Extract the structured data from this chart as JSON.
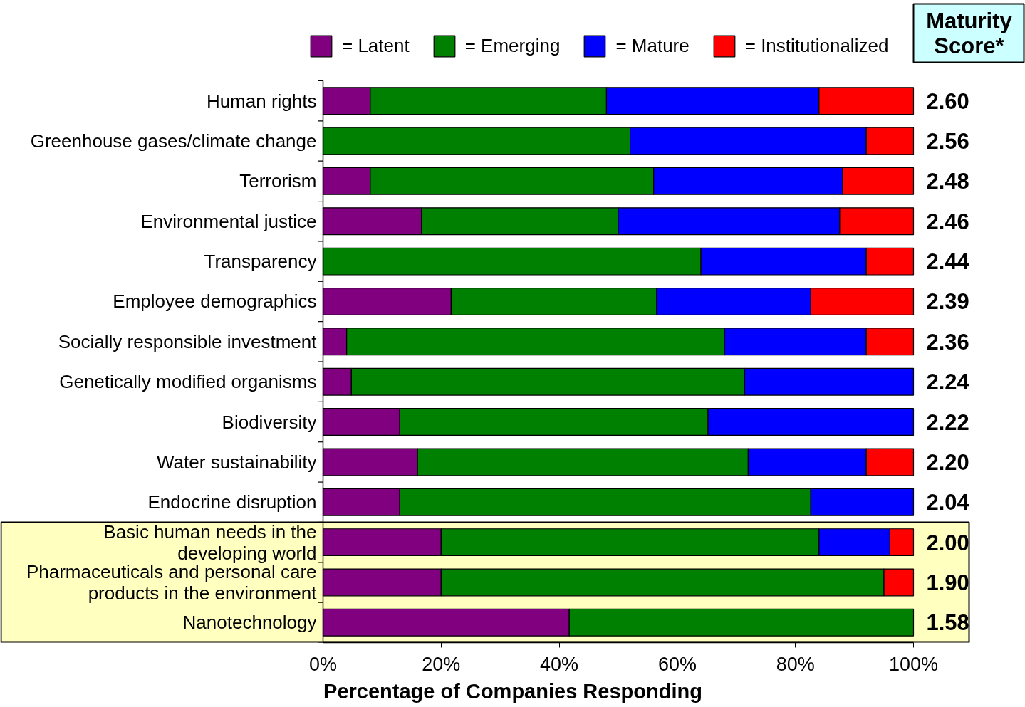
{
  "chart_data": {
    "type": "bar",
    "orientation": "horizontal",
    "stacked": true,
    "categories": [
      "Human rights",
      "Greenhouse gases/climate change",
      "Terrorism",
      "Environmental justice",
      "Transparency",
      "Employee demographics",
      "Socially responsible investment",
      "Genetically modified organisms",
      "Biodiversity",
      "Water sustainability",
      "Endocrine disruption",
      "Basic human needs in the developing world",
      "Pharmaceuticals and personal care products in the environment",
      "Nanotechnology"
    ],
    "series": [
      {
        "name": "= Latent",
        "color": "#800080",
        "values": [
          8,
          0,
          8,
          16.7,
          0,
          21.7,
          4,
          4.8,
          13.0,
          16,
          13.0,
          20,
          20,
          41.7
        ]
      },
      {
        "name": "= Emerging",
        "color": "#008000",
        "values": [
          40,
          52,
          48,
          33.3,
          64,
          34.8,
          64,
          66.6,
          52.2,
          56,
          69.6,
          64,
          75,
          58.3
        ]
      },
      {
        "name": "= Mature",
        "color": "#0000ff",
        "values": [
          36,
          40,
          32,
          37.5,
          28,
          26.1,
          24,
          28.6,
          34.8,
          20,
          17.4,
          12,
          0,
          0
        ]
      },
      {
        "name": "= Institutionalized",
        "color": "#ff0000",
        "values": [
          16,
          8,
          12,
          12.5,
          8,
          17.4,
          8,
          0,
          0,
          8,
          0,
          4,
          5,
          0
        ]
      }
    ],
    "xlabel": "Percentage of Companies Responding",
    "xlim": [
      0,
      100
    ],
    "xticks": [
      {
        "value": 0,
        "label": "0%"
      },
      {
        "value": 20,
        "label": "20%"
      },
      {
        "value": 40,
        "label": "40%"
      },
      {
        "value": 60,
        "label": "60%"
      },
      {
        "value": 80,
        "label": "80%"
      },
      {
        "value": 100,
        "label": "100%"
      }
    ],
    "bands": [
      {
        "axis": "y",
        "from": "Basic human needs in the developing world",
        "to": "Nanotechnology",
        "color": "#ffffc0"
      }
    ],
    "annotations": [
      "Maturity Score*",
      "2.60",
      "2.56",
      "2.48",
      "2.46",
      "2.44",
      "2.39",
      "2.36",
      "2.24",
      "2.22",
      "2.20",
      "2.04",
      "2.00",
      "1.90",
      "1.58"
    ],
    "legend": "top",
    "grid": false
  }
}
